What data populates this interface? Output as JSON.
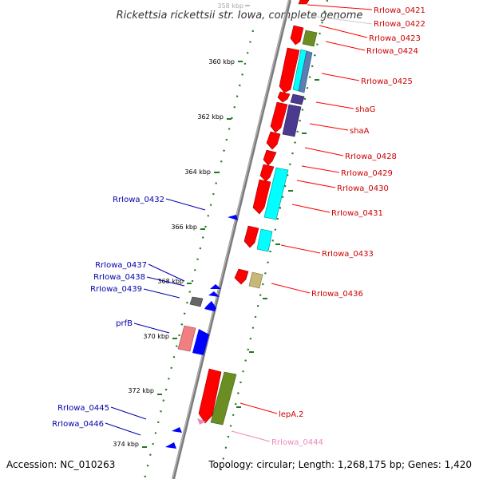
{
  "title": "Rickettsia rickettsii str. Iowa, complete genome",
  "accession": "Accession: NC_010263",
  "summary": "Topology: circular; Length: 1,268,175 bp; Genes: 1,420",
  "colors": {
    "backbone": "#8a8a8a",
    "tick": "#1e7a1e",
    "forward_label": "#cc0000",
    "reverse_label": "#0000aa",
    "rna_label": "#ee88bb"
  },
  "ticks": [
    {
      "label": "358 kbp"
    },
    {
      "label": "360 kbp"
    },
    {
      "label": "362 kbp"
    },
    {
      "label": "364 kbp"
    },
    {
      "label": "366 kbp"
    },
    {
      "label": "368 kbp"
    },
    {
      "label": "370 kbp"
    },
    {
      "label": "372 kbp"
    },
    {
      "label": "374 kbp"
    }
  ],
  "forward_labels": [
    {
      "text": "RrIowa_0421"
    },
    {
      "text": "RrIowa_0422"
    },
    {
      "text": "RrIowa_0423"
    },
    {
      "text": "RrIowa_0424"
    },
    {
      "text": "RrIowa_0425"
    },
    {
      "text": "shaG"
    },
    {
      "text": "shaA"
    },
    {
      "text": "RrIowa_0428"
    },
    {
      "text": "RrIowa_0429"
    },
    {
      "text": "RrIowa_0430"
    },
    {
      "text": "RrIowa_0431"
    },
    {
      "text": "RrIowa_0433"
    },
    {
      "text": "RrIowa_0436"
    },
    {
      "text": "lepA.2"
    },
    {
      "text": "RrIowa_0444"
    }
  ],
  "reverse_labels": [
    {
      "text": "RrIowa_0432"
    },
    {
      "text": "RrIowa_0437"
    },
    {
      "text": "RrIowa_0438"
    },
    {
      "text": "RrIowa_0439"
    },
    {
      "text": "prfB"
    },
    {
      "text": "RrIowa_0445"
    },
    {
      "text": "RrIowa_0446"
    }
  ]
}
